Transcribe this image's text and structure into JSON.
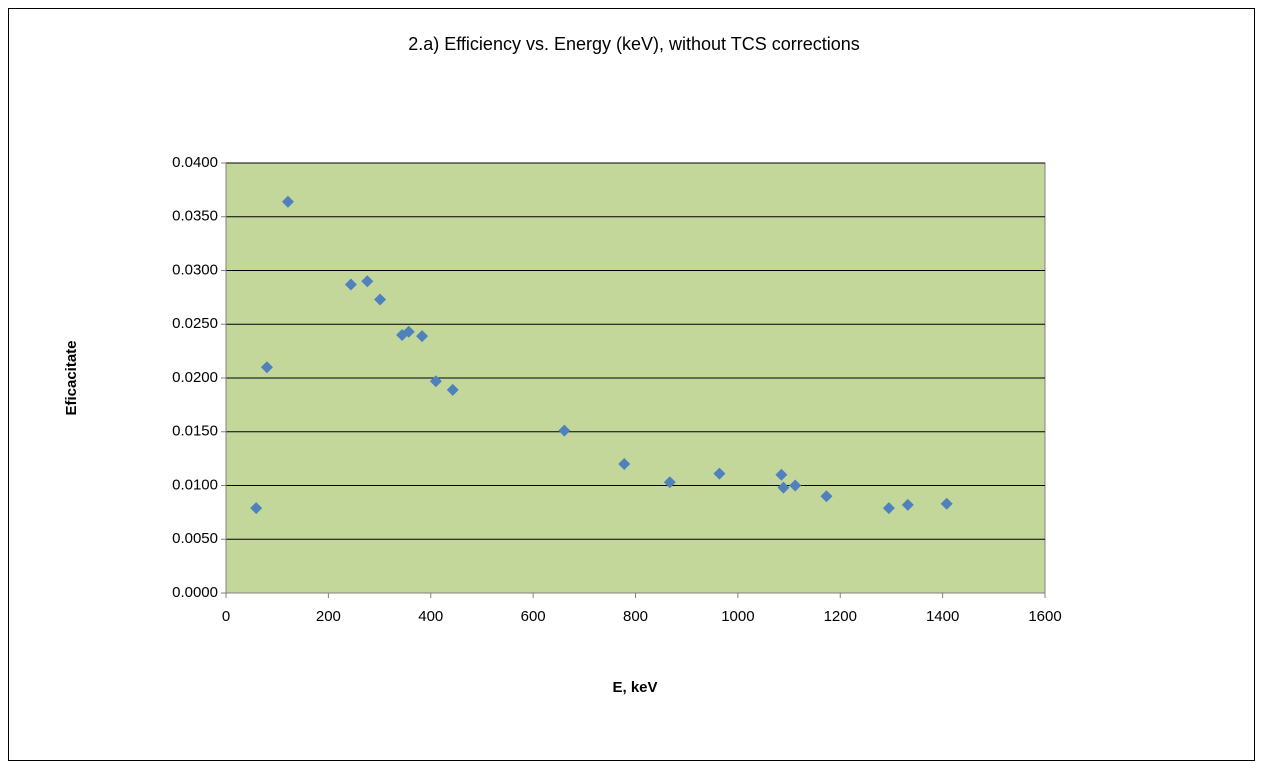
{
  "chart_data": {
    "type": "scatter",
    "title": "2.a) Efficiency vs. Energy (keV), without TCS corrections",
    "x_label": "E, keV",
    "y_label": "Eficacitate",
    "color": "#4f81bd",
    "plot_background": "#c4d79b",
    "grid": true,
    "xlim": [
      0,
      1600
    ],
    "xticks": [
      0,
      200,
      400,
      600,
      800,
      1000,
      1200,
      1400,
      1600
    ],
    "ylim": [
      0,
      0.04
    ],
    "yticks": [
      {
        "value": 0,
        "label": "0.0000"
      },
      {
        "value": 0.005,
        "label": "0.0050"
      },
      {
        "value": 0.01,
        "label": "0.0100"
      },
      {
        "value": 0.015,
        "label": "0.0150"
      },
      {
        "value": 0.02,
        "label": "0.0200"
      },
      {
        "value": 0.025,
        "label": "0.0250"
      },
      {
        "value": 0.03,
        "label": "0.0300"
      },
      {
        "value": 0.035,
        "label": "0.0350"
      },
      {
        "value": 0.04,
        "label": "0.0400"
      }
    ],
    "x": [
      59,
      80,
      121,
      244,
      276,
      301,
      344,
      357,
      383,
      410,
      443,
      661,
      778,
      867,
      964,
      1085,
      1089,
      1112,
      1173,
      1295,
      1332,
      1408
    ],
    "values": [
      0.0079,
      0.021,
      0.0364,
      0.0287,
      0.029,
      0.0273,
      0.024,
      0.0243,
      0.0239,
      0.0197,
      0.0189,
      0.0151,
      0.012,
      0.0103,
      0.0111,
      0.011,
      0.0098,
      0.01,
      0.009,
      0.0079,
      0.0082,
      0.0083
    ]
  }
}
